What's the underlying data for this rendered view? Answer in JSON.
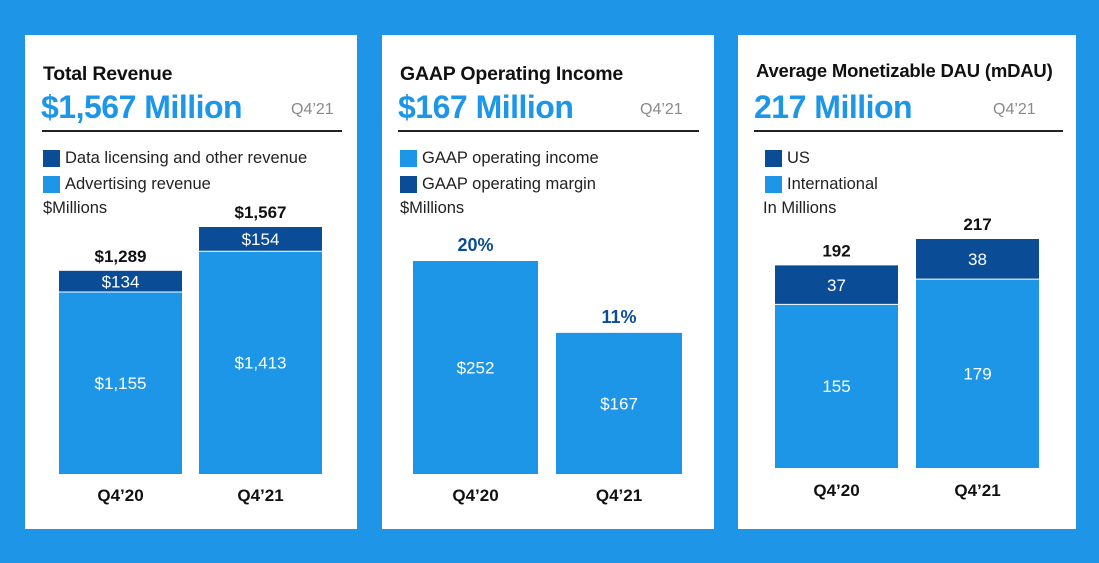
{
  "colors": {
    "background": "#1E95E6",
    "dark": "#0A4D96",
    "light": "#1D96E8"
  },
  "panels": [
    {
      "title": "Total Revenue",
      "headline": "$1,567 Million",
      "period": "Q4’21",
      "legend": [
        {
          "label": "Data licensing and other revenue",
          "color": "#0A4D96"
        },
        {
          "label": "Advertising revenue",
          "color": "#1D96E8"
        }
      ],
      "unit": "$Millions"
    },
    {
      "title": "GAAP Operating Income",
      "headline": "$167 Million",
      "period": "Q4’21",
      "legend": [
        {
          "label": "GAAP operating income",
          "color": "#1D96E8"
        },
        {
          "label": "GAAP operating margin",
          "color": "#0A4D96"
        }
      ],
      "unit": "$Millions"
    },
    {
      "title": "Average Monetizable DAU (mDAU)",
      "headline": "217 Million",
      "period": "Q4’21",
      "legend": [
        {
          "label": "US",
          "color": "#0A4D96"
        },
        {
          "label": "International",
          "color": "#1D96E8"
        }
      ],
      "unit": "In Millions"
    }
  ],
  "chart_data": [
    {
      "type": "bar",
      "stacked": true,
      "title": "Total Revenue",
      "ylabel": "$Millions",
      "categories": [
        "Q4’20",
        "Q4’21"
      ],
      "series": [
        {
          "name": "Advertising revenue",
          "values": [
            1155,
            1413
          ],
          "labels": [
            "$1,155",
            "$1,413"
          ],
          "color": "#1D96E8"
        },
        {
          "name": "Data licensing and other revenue",
          "values": [
            134,
            154
          ],
          "labels": [
            "$134",
            "$154"
          ],
          "color": "#0A4D96"
        }
      ],
      "totals": [
        1289,
        1567
      ],
      "total_labels": [
        "$1,289",
        "$1,567"
      ]
    },
    {
      "type": "bar",
      "stacked": false,
      "title": "GAAP Operating Income",
      "ylabel": "$Millions",
      "categories": [
        "Q4’20",
        "Q4’21"
      ],
      "series": [
        {
          "name": "GAAP operating income",
          "values": [
            252,
            167
          ],
          "labels": [
            "$252",
            "$167"
          ],
          "color": "#1D96E8"
        }
      ],
      "annotations": {
        "name": "GAAP operating margin",
        "values": [
          20,
          11
        ],
        "labels": [
          "20%",
          "11%"
        ],
        "color": "#0A4D96"
      }
    },
    {
      "type": "bar",
      "stacked": true,
      "title": "Average Monetizable DAU (mDAU)",
      "ylabel": "In Millions",
      "categories": [
        "Q4’20",
        "Q4’21"
      ],
      "series": [
        {
          "name": "International",
          "values": [
            155,
            179
          ],
          "labels": [
            "155",
            "179"
          ],
          "color": "#1D96E8"
        },
        {
          "name": "US",
          "values": [
            37,
            38
          ],
          "labels": [
            "37",
            "38"
          ],
          "color": "#0A4D96"
        }
      ],
      "totals": [
        192,
        217
      ],
      "total_labels": [
        "192",
        "217"
      ]
    }
  ]
}
